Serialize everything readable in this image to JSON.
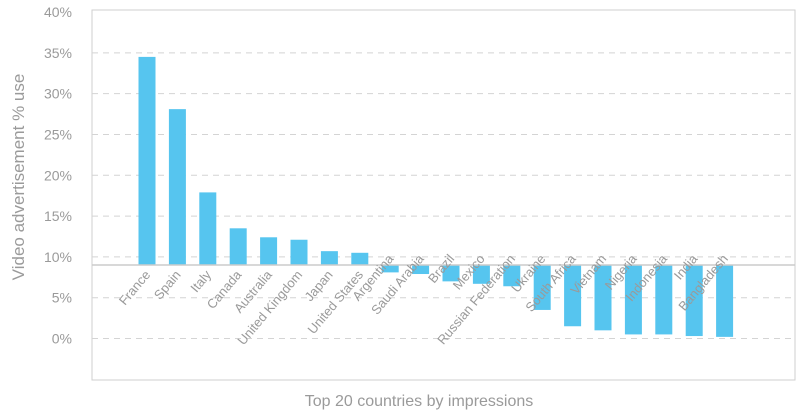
{
  "chart_data": {
    "type": "bar",
    "title": "",
    "xlabel": "Top 20 countries by impressions",
    "ylabel": "Video advertisement % use",
    "ylim": [
      0,
      40
    ],
    "baseline": 9,
    "yticks": [
      "0%",
      "5%",
      "10%",
      "15%",
      "20%",
      "25%",
      "30%",
      "35%",
      "40%"
    ],
    "ytick_values": [
      0,
      5,
      10,
      15,
      20,
      25,
      30,
      35,
      40
    ],
    "grid": true,
    "color": "#56c5ef",
    "categories": [
      "France",
      "Spain",
      "Italy",
      "Canada",
      "Australia",
      "United Kingdom",
      "Japan",
      "United States",
      "Argentina",
      "Saudi Arabia",
      "Brazil",
      "Mexico",
      "Russian Federation",
      "Ukraine",
      "South Africa",
      "Vietnam",
      "Nigeria",
      "Indonesia",
      "India",
      "Bangladesh"
    ],
    "values": [
      34.5,
      28.1,
      17.9,
      13.5,
      12.4,
      12.1,
      10.7,
      10.5,
      8.1,
      7.9,
      7.0,
      6.7,
      6.4,
      3.5,
      1.5,
      1.0,
      0.5,
      0.5,
      0.3,
      0.2
    ]
  }
}
